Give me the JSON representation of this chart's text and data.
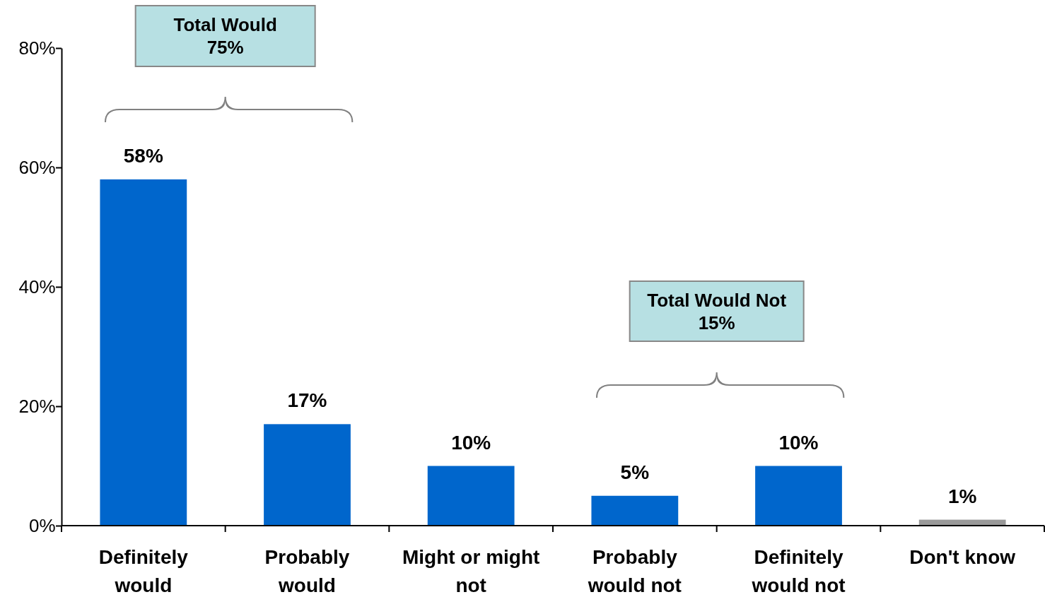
{
  "chart_data": {
    "type": "bar",
    "categories": [
      "Definitely would",
      "Probably would",
      "Might or might not",
      "Probably would not",
      "Definitely would not",
      "Don't know"
    ],
    "values": [
      58,
      17,
      10,
      5,
      10,
      1
    ],
    "colors": [
      "#0066cc",
      "#0066cc",
      "#0066cc",
      "#0066cc",
      "#0066cc",
      "#999999"
    ],
    "value_labels": [
      "58%",
      "17%",
      "10%",
      "5%",
      "10%",
      "1%"
    ],
    "ylim": [
      0,
      80
    ],
    "yticks": [
      {
        "value": 0,
        "label": "0%"
      },
      {
        "value": 20,
        "label": "20%"
      },
      {
        "value": 40,
        "label": "40%"
      },
      {
        "value": 60,
        "label": "60%"
      },
      {
        "value": 80,
        "label": "80%"
      }
    ],
    "annotations": [
      "Total Would\n75%",
      "Total Would Not\n15%"
    ],
    "grid": false
  }
}
